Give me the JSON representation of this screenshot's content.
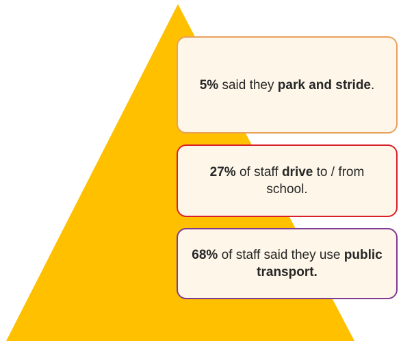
{
  "colors": {
    "pyramid_fill": "#ffc000",
    "box_fill": "#fdf6e9",
    "top_box_border": "#e9a15a",
    "middle_box_border": "#d8202a",
    "bottom_box_border": "#7f3b93",
    "text": "#262626"
  },
  "boxes": {
    "top": {
      "percent": "5%",
      "text_1": " said they ",
      "bold_1": "park and stride",
      "text_2": "."
    },
    "middle": {
      "percent": "27%",
      "text_1": " of staff ",
      "bold_1": "drive",
      "text_2": " to / from school."
    },
    "bottom": {
      "percent": "68%",
      "text_1": " of staff said they use ",
      "bold_1": "public transport."
    }
  }
}
